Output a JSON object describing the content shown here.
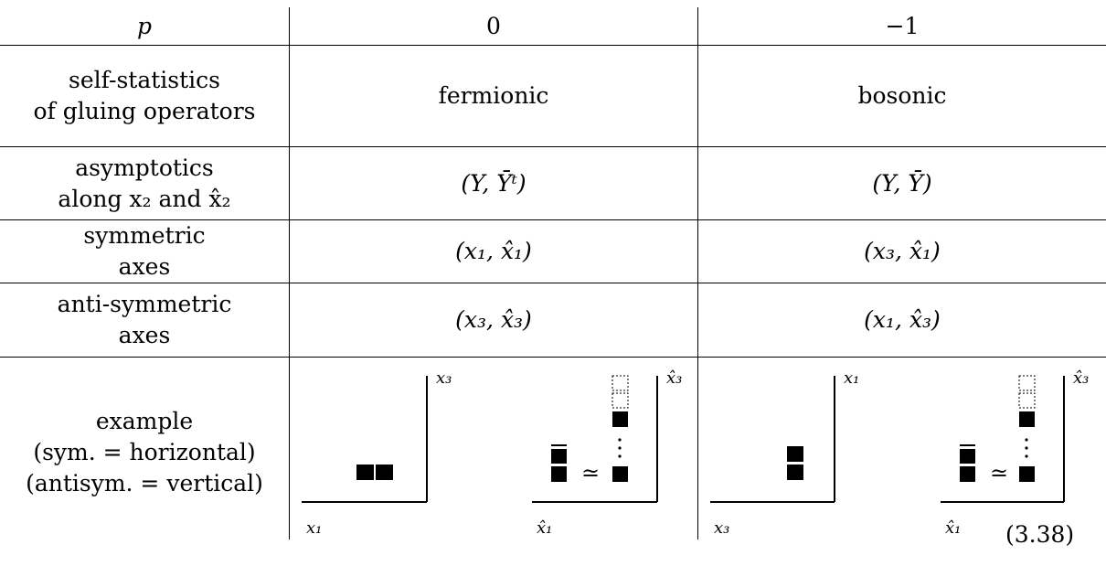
{
  "table": {
    "header": {
      "label": "p",
      "col0": "0",
      "col1": "−1"
    },
    "rows": [
      {
        "label_lines": [
          "self-statistics",
          "of gluing operators"
        ],
        "col0": "fermionic",
        "col1": "bosonic"
      },
      {
        "label_lines": [
          "asymptotics",
          "along x₂ and x̂₂"
        ],
        "col0": "(Y, Ȳᵗ)",
        "col1": "(Y, Ȳ)"
      },
      {
        "label_lines": [
          "symmetric",
          "axes"
        ],
        "col0": "(x₁, x̂₁)",
        "col1": "(x₃, x̂₁)"
      },
      {
        "label_lines": [
          "anti-symmetric",
          "axes"
        ],
        "col0": "(x₃, x̂₃)",
        "col1": "(x₁, x̂₃)"
      }
    ],
    "example": {
      "label_lines": [
        "example",
        "(sym. = horizontal)",
        "(antisym. = vertical)"
      ],
      "col0": {
        "left_axes": {
          "horizontal": "x₁",
          "vertical": "x₃"
        },
        "right_axes": {
          "horizontal": "x̂₁",
          "vertical": "x̂₃"
        },
        "relation": "≃"
      },
      "col1": {
        "left_axes": {
          "horizontal": "x₃",
          "vertical": "x₁"
        },
        "right_axes": {
          "horizontal": "x̂₁",
          "vertical": "x̂₃"
        },
        "relation": "≃"
      }
    }
  },
  "equation_number": "(3.38)"
}
